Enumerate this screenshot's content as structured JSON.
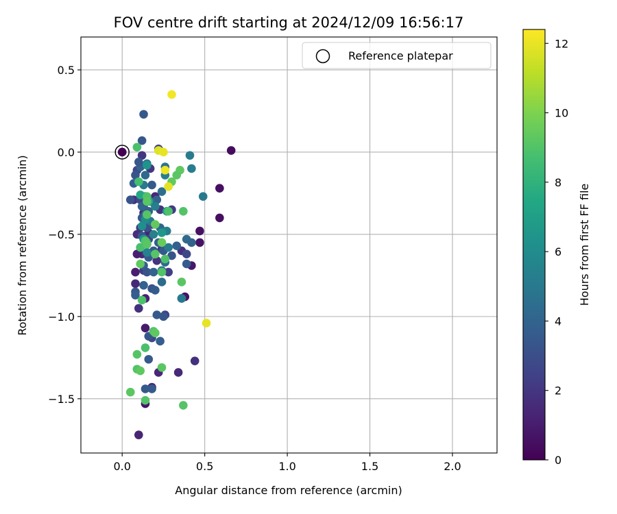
{
  "chart_data": {
    "type": "scatter",
    "title": "FOV centre drift starting at 2024/12/09 16:56:17",
    "xlabel": "Angular distance from reference (arcmin)",
    "ylabel": "Rotation from reference (arcmin)",
    "xlim": [
      -0.25,
      2.27
    ],
    "ylim": [
      -1.83,
      0.7
    ],
    "xticks": [
      0.0,
      0.5,
      1.0,
      1.5,
      2.0
    ],
    "xtick_labels": [
      "0.0",
      "0.5",
      "1.0",
      "1.5",
      "2.0"
    ],
    "yticks": [
      0.5,
      0.0,
      -0.5,
      -1.0,
      -1.5
    ],
    "ytick_labels": [
      "0.5",
      "0.0",
      "−0.5",
      "−1.0",
      "−1.5"
    ],
    "grid": true,
    "legend": {
      "position": "top-right",
      "entries": [
        {
          "label": "Reference platepar",
          "marker": "open-circle"
        }
      ]
    },
    "reference_point": {
      "x": 0.0,
      "y": 0.0,
      "hours": 0.0
    },
    "colorbar": {
      "label": "Hours from first FF file",
      "range": [
        0,
        12.4
      ],
      "ticks": [
        0,
        2,
        4,
        6,
        8,
        10,
        12
      ],
      "tick_labels": [
        "0",
        "2",
        "4",
        "6",
        "8",
        "10",
        "12"
      ],
      "colormap": "viridis"
    },
    "series": [
      {
        "points": [
          [
            0.0,
            0.0,
            0.3
          ],
          [
            0.66,
            0.01,
            0.4
          ],
          [
            0.59,
            -0.22,
            0.5
          ],
          [
            0.59,
            -0.4,
            0.5
          ],
          [
            0.47,
            -0.48,
            0.6
          ],
          [
            0.47,
            -0.55,
            0.7
          ],
          [
            0.42,
            -0.69,
            0.8
          ],
          [
            0.38,
            -0.88,
            0.6
          ],
          [
            0.34,
            -1.34,
            1.5
          ],
          [
            0.44,
            -1.27,
            1.8
          ],
          [
            0.1,
            -1.72,
            1.3
          ],
          [
            0.14,
            -1.53,
            0.7
          ],
          [
            0.14,
            -1.07,
            0.9
          ],
          [
            0.14,
            -0.89,
            1.2
          ],
          [
            0.08,
            -0.73,
            1.1
          ],
          [
            0.08,
            -0.8,
            1.5
          ],
          [
            0.1,
            -0.95,
            1.8
          ],
          [
            0.12,
            -0.62,
            1.6
          ],
          [
            0.18,
            -1.43,
            1.3
          ],
          [
            0.22,
            -1.34,
            1.4
          ],
          [
            0.21,
            -0.66,
            1.9
          ],
          [
            0.24,
            -0.59,
            2.0
          ],
          [
            0.36,
            -0.6,
            1.8
          ],
          [
            0.3,
            -0.35,
            2.2
          ],
          [
            0.28,
            -0.73,
            2.3
          ],
          [
            0.16,
            -0.49,
            1.2
          ],
          [
            0.13,
            -0.37,
            1.6
          ],
          [
            0.17,
            -0.1,
            2.0
          ],
          [
            0.2,
            -0.27,
            1.4
          ],
          [
            0.23,
            -0.35,
            1.9
          ],
          [
            0.11,
            -0.46,
            2.2
          ],
          [
            0.09,
            -0.5,
            1.7
          ],
          [
            0.13,
            -0.72,
            2.1
          ],
          [
            0.16,
            -0.53,
            2.4
          ],
          [
            0.07,
            -0.29,
            1.7
          ],
          [
            0.09,
            -0.11,
            2.6
          ],
          [
            0.18,
            -0.44,
            2.3
          ],
          [
            0.12,
            -0.02,
            2.0
          ],
          [
            0.22,
            0.02,
            2.4
          ],
          [
            0.26,
            -0.99,
            2.5
          ],
          [
            0.18,
            -1.13,
            2.7
          ],
          [
            0.39,
            -0.62,
            2.6
          ],
          [
            0.11,
            -0.29,
            2.8
          ],
          [
            0.15,
            -0.56,
            2.5
          ],
          [
            0.09,
            -0.62,
            1.1
          ],
          [
            0.13,
            0.23,
            3.5
          ],
          [
            0.12,
            0.07,
            3.4
          ],
          [
            0.08,
            -0.14,
            3.3
          ],
          [
            0.07,
            -0.19,
            3.7
          ],
          [
            0.05,
            -0.29,
            3.2
          ],
          [
            0.13,
            -0.33,
            3.6
          ],
          [
            0.12,
            -0.4,
            3.5
          ],
          [
            0.15,
            -0.46,
            3.1
          ],
          [
            0.12,
            -0.51,
            3.3
          ],
          [
            0.15,
            -0.56,
            3.9
          ],
          [
            0.16,
            -0.64,
            3.6
          ],
          [
            0.13,
            -0.69,
            3.8
          ],
          [
            0.15,
            -0.73,
            3.2
          ],
          [
            0.18,
            -0.83,
            3.3
          ],
          [
            0.2,
            -0.84,
            3.6
          ],
          [
            0.08,
            -0.85,
            3.4
          ],
          [
            0.08,
            -0.87,
            3.7
          ],
          [
            0.21,
            -0.99,
            3.5
          ],
          [
            0.25,
            -1.0,
            3.4
          ],
          [
            0.23,
            -1.15,
            3.7
          ],
          [
            0.16,
            -1.12,
            3.3
          ],
          [
            0.16,
            -1.26,
            3.6
          ],
          [
            0.14,
            -1.44,
            3.5
          ],
          [
            0.18,
            -1.44,
            3.6
          ],
          [
            0.22,
            -0.55,
            3.8
          ],
          [
            0.18,
            -0.2,
            3.6
          ],
          [
            0.21,
            -0.29,
            3.9
          ],
          [
            0.25,
            -0.6,
            3.5
          ],
          [
            0.3,
            -0.63,
            3.3
          ],
          [
            0.33,
            -0.57,
            3.9
          ],
          [
            0.39,
            -0.53,
            4.3
          ],
          [
            0.42,
            -0.55,
            4.0
          ],
          [
            0.39,
            -0.68,
            3.6
          ],
          [
            0.36,
            -0.89,
            3.8
          ],
          [
            0.11,
            -0.09,
            3.9
          ],
          [
            0.1,
            -0.06,
            3.4
          ],
          [
            0.14,
            -0.14,
            4.3
          ],
          [
            0.12,
            -0.33,
            4.0
          ],
          [
            0.16,
            -0.36,
            3.8
          ],
          [
            0.14,
            -0.38,
            4.2
          ],
          [
            0.23,
            -0.46,
            4.1
          ],
          [
            0.24,
            -0.79,
            4.4
          ],
          [
            0.26,
            -0.67,
            4.2
          ],
          [
            0.19,
            -0.73,
            4.0
          ],
          [
            0.13,
            -0.81,
            3.9
          ],
          [
            0.11,
            -0.58,
            4.3
          ],
          [
            0.19,
            -0.6,
            3.5
          ],
          [
            0.41,
            -0.02,
            5.1
          ],
          [
            0.42,
            -0.1,
            5.2
          ],
          [
            0.49,
            -0.27,
            5.0
          ],
          [
            0.26,
            -0.14,
            5.3
          ],
          [
            0.36,
            -0.89,
            5.0
          ],
          [
            0.15,
            -0.07,
            4.9
          ],
          [
            0.13,
            -0.2,
            5.1
          ],
          [
            0.19,
            -0.5,
            5.4
          ],
          [
            0.14,
            -0.27,
            4.8
          ],
          [
            0.17,
            -0.42,
            5.0
          ],
          [
            0.27,
            -0.48,
            5.2
          ],
          [
            0.24,
            -0.72,
            4.9
          ],
          [
            0.2,
            -0.33,
            5.3
          ],
          [
            0.15,
            -0.61,
            5.5
          ],
          [
            0.26,
            -0.09,
            4.8
          ],
          [
            0.28,
            -0.58,
            5.0
          ],
          [
            0.24,
            -0.24,
            4.6
          ],
          [
            0.17,
            -0.3,
            4.7
          ],
          [
            0.15,
            -0.08,
            6.4
          ],
          [
            0.24,
            -0.49,
            6.6
          ],
          [
            0.12,
            -0.45,
            6.2
          ],
          [
            0.27,
            -0.36,
            6.8
          ],
          [
            0.13,
            -0.53,
            6.5
          ],
          [
            0.14,
            -0.41,
            6.0
          ],
          [
            0.16,
            -0.3,
            7.6
          ],
          [
            0.15,
            -0.55,
            7.3
          ],
          [
            0.11,
            -0.26,
            7.5
          ],
          [
            0.09,
            0.03,
            8.8
          ],
          [
            0.1,
            -0.18,
            8.6
          ],
          [
            0.15,
            -0.27,
            9.0
          ],
          [
            0.15,
            -0.3,
            9.2
          ],
          [
            0.15,
            -0.38,
            9.1
          ],
          [
            0.14,
            -0.54,
            9.0
          ],
          [
            0.2,
            -0.44,
            9.4
          ],
          [
            0.11,
            -0.58,
            8.8
          ],
          [
            0.24,
            -0.55,
            9.1
          ],
          [
            0.28,
            -0.36,
            8.9
          ],
          [
            0.35,
            -0.11,
            9.3
          ],
          [
            0.33,
            -0.14,
            9.2
          ],
          [
            0.3,
            -0.18,
            9.4
          ],
          [
            0.37,
            -0.36,
            9.0
          ],
          [
            0.26,
            -0.65,
            8.9
          ],
          [
            0.2,
            -0.62,
            9.1
          ],
          [
            0.11,
            -0.68,
            9.3
          ],
          [
            0.24,
            -0.73,
            9.0
          ],
          [
            0.36,
            -0.79,
            9.2
          ],
          [
            0.12,
            -0.9,
            8.9
          ],
          [
            0.19,
            -1.09,
            9.0
          ],
          [
            0.2,
            -1.1,
            9.3
          ],
          [
            0.14,
            -1.19,
            8.8
          ],
          [
            0.09,
            -1.23,
            9.1
          ],
          [
            0.24,
            -1.31,
            9.2
          ],
          [
            0.09,
            -1.32,
            9.0
          ],
          [
            0.11,
            -1.33,
            9.3
          ],
          [
            0.05,
            -1.46,
            9.2
          ],
          [
            0.14,
            -1.51,
            9.0
          ],
          [
            0.37,
            -1.54,
            9.1
          ],
          [
            0.24,
            -0.55,
            9.5
          ],
          [
            0.15,
            -0.56,
            9.2
          ],
          [
            0.3,
            0.35,
            12.2
          ],
          [
            0.22,
            0.01,
            11.8
          ],
          [
            0.25,
            0.0,
            12.0
          ],
          [
            0.26,
            -0.11,
            12.1
          ],
          [
            0.28,
            -0.21,
            11.9
          ],
          [
            0.51,
            -1.04,
            12.0
          ]
        ]
      }
    ]
  }
}
